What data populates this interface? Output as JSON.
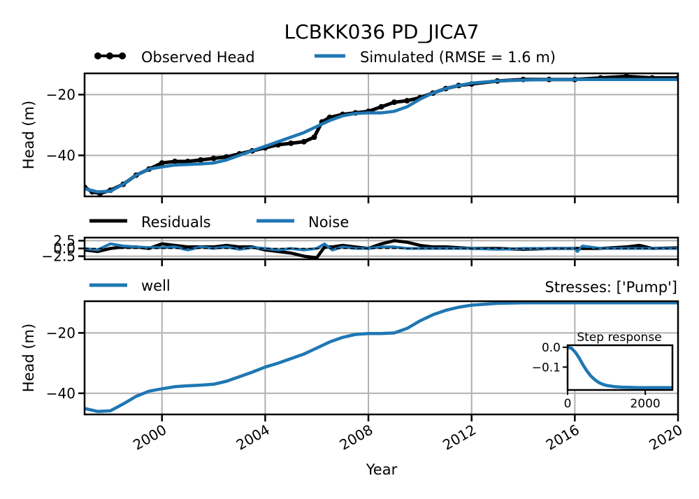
{
  "colors": {
    "observed": "#000000",
    "simulated": "#1f77b4",
    "residuals": "#000000",
    "noise": "#1f77b4",
    "well": "#1f77b4",
    "grid": "#b0b0b0"
  },
  "chart_data": [
    {
      "type": "line",
      "title": "LCBKK036 PD_JICA7",
      "ylabel": "Head (m)",
      "xlim": [
        1997.0,
        2020.0
      ],
      "ylim": [
        -53.5,
        -13.0
      ],
      "yticks": [
        -20,
        -40
      ],
      "ytick_labels": [
        "−20",
        "−40"
      ],
      "legend": "top",
      "grid": true,
      "series": [
        {
          "name": "Observed Head",
          "x": [
            1997.0,
            1997.3,
            1997.6,
            1998.0,
            1998.5,
            1999.0,
            1999.5,
            2000.0,
            2000.5,
            2001.0,
            2001.5,
            2002.0,
            2002.5,
            2003.0,
            2003.5,
            2004.0,
            2004.5,
            2005.0,
            2005.5,
            2005.9,
            2006.2,
            2006.5,
            2007.0,
            2007.5,
            2008.0,
            2008.5,
            2009.0,
            2009.5,
            2010.0,
            2010.5,
            2011.0,
            2011.5,
            2012.0,
            2013.0,
            2014.0,
            2015.0,
            2016.0,
            2017.0,
            2018.0,
            2019.0,
            2020.0
          ],
          "values": [
            -50.5,
            -52.0,
            -52.5,
            -51.5,
            -49.5,
            -46.5,
            -44.5,
            -42.5,
            -42.0,
            -42.0,
            -41.5,
            -41.0,
            -40.5,
            -39.5,
            -38.5,
            -37.5,
            -36.5,
            -36.0,
            -35.5,
            -34.0,
            -29.0,
            -27.5,
            -26.5,
            -26.0,
            -25.5,
            -24.0,
            -22.5,
            -22.0,
            -21.0,
            -19.5,
            -18.0,
            -17.0,
            -16.5,
            -15.5,
            -15.0,
            -15.0,
            -15.0,
            -14.5,
            -14.0,
            -14.5,
            -14.5
          ]
        },
        {
          "name": "Simulated (RMSE = 1.6 m)",
          "x": [
            1997.0,
            1997.5,
            1998.0,
            1998.5,
            1999.0,
            1999.5,
            2000.0,
            2000.5,
            2001.0,
            2001.5,
            2002.0,
            2002.5,
            2003.0,
            2003.5,
            2004.0,
            2004.5,
            2005.0,
            2005.5,
            2006.0,
            2006.5,
            2007.0,
            2007.5,
            2008.0,
            2008.5,
            2009.0,
            2009.5,
            2010.0,
            2010.5,
            2011.0,
            2011.5,
            2012.0,
            2013.0,
            2014.0,
            2015.0,
            2016.0,
            2017.0,
            2018.0,
            2019.0,
            2020.0
          ],
          "values": [
            -51.0,
            -52.0,
            -51.8,
            -49.5,
            -46.5,
            -44.5,
            -43.8,
            -43.2,
            -43.0,
            -42.8,
            -42.5,
            -41.5,
            -40.0,
            -38.5,
            -37.0,
            -35.5,
            -34.0,
            -32.5,
            -30.5,
            -28.5,
            -27.0,
            -26.2,
            -26.0,
            -26.0,
            -25.5,
            -24.0,
            -21.5,
            -19.5,
            -18.0,
            -17.0,
            -16.2,
            -15.5,
            -15.2,
            -15.0,
            -15.0,
            -15.0,
            -15.0,
            -15.0,
            -15.0
          ]
        }
      ]
    },
    {
      "type": "line",
      "ylabel": "",
      "xlim": [
        1997.0,
        2020.0
      ],
      "ylim": [
        -3.5,
        3.5
      ],
      "yticks": [
        2.5,
        0.0,
        -2.5
      ],
      "ytick_labels": [
        "2.5",
        "0.0",
        "−2.5"
      ],
      "legend": "top-left",
      "grid": true,
      "series": [
        {
          "name": "Residuals",
          "x": [
            1997.0,
            1997.5,
            1998.0,
            1998.5,
            1999.0,
            1999.5,
            2000.0,
            2000.5,
            2001.0,
            2001.5,
            2002.0,
            2002.5,
            2003.0,
            2003.5,
            2004.0,
            2004.5,
            2005.0,
            2005.5,
            2006.0,
            2006.3,
            2006.6,
            2007.0,
            2007.5,
            2008.0,
            2008.5,
            2009.0,
            2009.5,
            2010.0,
            2010.5,
            2011.0,
            2012.0,
            2013.0,
            2014.0,
            2015.0,
            2016.0,
            2017.0,
            2018.0,
            2018.5,
            2019.0,
            2020.0
          ],
          "values": [
            -0.5,
            -1.0,
            0.0,
            0.5,
            0.5,
            0.0,
            1.5,
            1.0,
            0.5,
            0.5,
            0.5,
            1.0,
            0.5,
            0.5,
            -0.5,
            -1.0,
            -1.5,
            -2.5,
            -3.0,
            0.5,
            0.5,
            1.0,
            0.5,
            0.0,
            1.5,
            2.5,
            2.0,
            1.0,
            0.5,
            0.5,
            0.0,
            0.0,
            -0.3,
            0.0,
            0.0,
            0.0,
            0.5,
            1.0,
            0.0,
            0.2
          ]
        },
        {
          "name": "Noise",
          "x": [
            1997.0,
            1997.5,
            1998.0,
            1998.5,
            1999.0,
            1999.5,
            2000.0,
            2000.5,
            2001.0,
            2001.5,
            2002.0,
            2002.5,
            2003.0,
            2003.5,
            2004.0,
            2004.5,
            2005.0,
            2005.5,
            2006.0,
            2006.3,
            2006.6,
            2007.0,
            2007.5,
            2008.0,
            2008.5,
            2009.0,
            2009.5,
            2010.0,
            2010.5,
            2011.0,
            2012.0,
            2013.0,
            2014.0,
            2015.0,
            2016.0,
            2016.1,
            2016.3,
            2017.0,
            2018.0,
            2019.0,
            2020.0
          ],
          "values": [
            0.0,
            -0.5,
            1.5,
            0.8,
            0.5,
            0.3,
            0.3,
            0.5,
            -0.5,
            0.5,
            0.0,
            0.5,
            -0.3,
            0.3,
            0.0,
            -0.5,
            0.0,
            -0.5,
            0.0,
            1.5,
            -0.5,
            0.5,
            0.0,
            0.0,
            0.5,
            0.5,
            0.0,
            0.0,
            0.0,
            0.0,
            0.0,
            -0.3,
            0.0,
            0.0,
            0.0,
            -1.0,
            0.8,
            0.0,
            0.0,
            0.0,
            0.0
          ]
        }
      ]
    },
    {
      "type": "line",
      "title": "Stresses: ['Pump']",
      "ylabel": "Head (m)",
      "xlabel": "Year",
      "xlim": [
        1997.0,
        2020.0
      ],
      "ylim": [
        -47.0,
        -9.5
      ],
      "yticks": [
        -20,
        -40
      ],
      "ytick_labels": [
        "−20",
        "−40"
      ],
      "xticks": [
        2000,
        2004,
        2008,
        2012,
        2016,
        2020
      ],
      "xtick_labels": [
        "2000",
        "2004",
        "2008",
        "2012",
        "2016",
        "2020"
      ],
      "legend": "top-left",
      "grid": true,
      "series": [
        {
          "name": "well",
          "x": [
            1997.0,
            1997.5,
            1998.0,
            1998.5,
            1999.0,
            1999.5,
            2000.0,
            2000.5,
            2001.0,
            2001.5,
            2002.0,
            2002.5,
            2003.0,
            2003.5,
            2004.0,
            2004.5,
            2005.0,
            2005.5,
            2006.0,
            2006.5,
            2007.0,
            2007.5,
            2008.0,
            2008.5,
            2009.0,
            2009.5,
            2010.0,
            2010.5,
            2011.0,
            2011.5,
            2012.0,
            2013.0,
            2014.0,
            2015.0,
            2016.0,
            2017.0,
            2018.0,
            2019.0,
            2020.0
          ],
          "values": [
            -45.0,
            -46.0,
            -45.8,
            -43.5,
            -41.0,
            -39.3,
            -38.5,
            -37.8,
            -37.5,
            -37.3,
            -37.0,
            -36.0,
            -34.5,
            -33.0,
            -31.3,
            -30.0,
            -28.5,
            -27.0,
            -25.0,
            -23.0,
            -21.5,
            -20.5,
            -20.2,
            -20.2,
            -20.0,
            -18.5,
            -16.0,
            -14.0,
            -12.5,
            -11.5,
            -10.8,
            -10.2,
            -10.0,
            -10.0,
            -10.0,
            -10.0,
            -10.0,
            -10.0,
            -10.0
          ]
        }
      ]
    },
    {
      "type": "line",
      "title": "Step response",
      "xlim": [
        0,
        2700
      ],
      "ylim": [
        -0.215,
        0.01
      ],
      "xticks": [
        0,
        2000
      ],
      "xtick_labels": [
        "0",
        "2000"
      ],
      "yticks": [
        0.0,
        -0.1
      ],
      "ytick_labels": [
        "0.0",
        "−0.1"
      ],
      "series": [
        {
          "x": [
            0,
            100,
            200,
            300,
            400,
            500,
            600,
            700,
            800,
            900,
            1000,
            1200,
            1400,
            1600,
            1800,
            2000,
            2200,
            2400,
            2700
          ],
          "values": [
            0.0,
            -0.005,
            -0.025,
            -0.055,
            -0.09,
            -0.12,
            -0.145,
            -0.163,
            -0.177,
            -0.186,
            -0.192,
            -0.198,
            -0.201,
            -0.202,
            -0.203,
            -0.203,
            -0.203,
            -0.203,
            -0.203
          ]
        }
      ]
    }
  ]
}
